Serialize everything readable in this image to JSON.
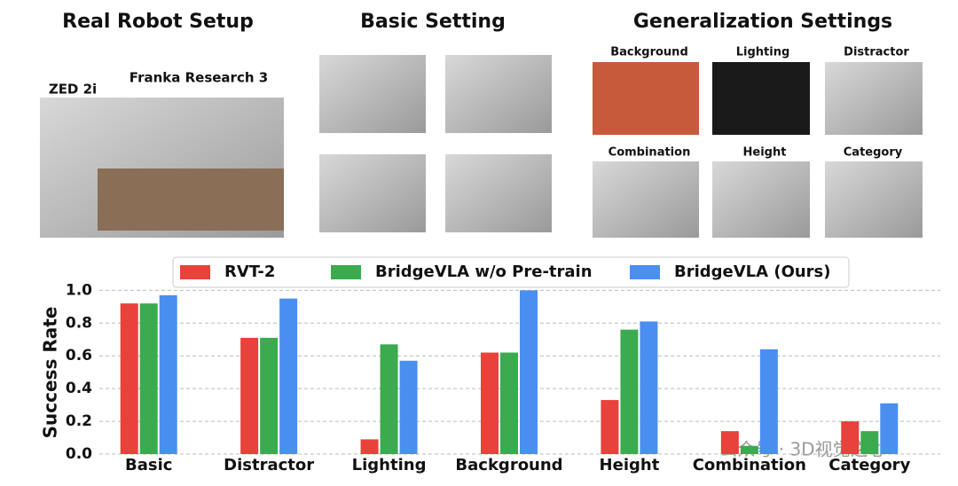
{
  "panels": {
    "titles": [
      "Real Robot Setup",
      "Basic Setting",
      "Generalization Settings"
    ],
    "setup_labels": [
      "ZED 2i",
      "Franka Research 3"
    ],
    "generalization_labels": [
      "Background",
      "Lighting",
      "Distractor",
      "Combination",
      "Height",
      "Category"
    ]
  },
  "watermark": "公众号 · 3D视觉之心",
  "chart_data": {
    "type": "bar",
    "categories": [
      "Basic",
      "Distractor",
      "Lighting",
      "Background",
      "Height",
      "Combination",
      "Category"
    ],
    "series": [
      {
        "name": "RVT-2",
        "color": "#e8423a",
        "values": [
          0.92,
          0.71,
          0.09,
          0.62,
          0.33,
          0.14,
          0.2
        ]
      },
      {
        "name": "BridgeVLA w/o Pre-train",
        "color": "#3caa4f",
        "values": [
          0.92,
          0.71,
          0.67,
          0.62,
          0.76,
          0.05,
          0.14
        ]
      },
      {
        "name": "BridgeVLA (Ours)",
        "color": "#4a8ef0",
        "values": [
          0.97,
          0.95,
          0.57,
          1.0,
          0.81,
          0.64,
          0.31
        ]
      }
    ],
    "ylabel": "Success Rate",
    "ylim": [
      0,
      1.04
    ],
    "yticks": [
      {
        "value": 0,
        "label": "0.0"
      },
      0.2,
      0.4,
      0.6,
      0.8,
      {
        "value": 1,
        "label": "1.0"
      }
    ],
    "grid": true,
    "legend": "top"
  }
}
